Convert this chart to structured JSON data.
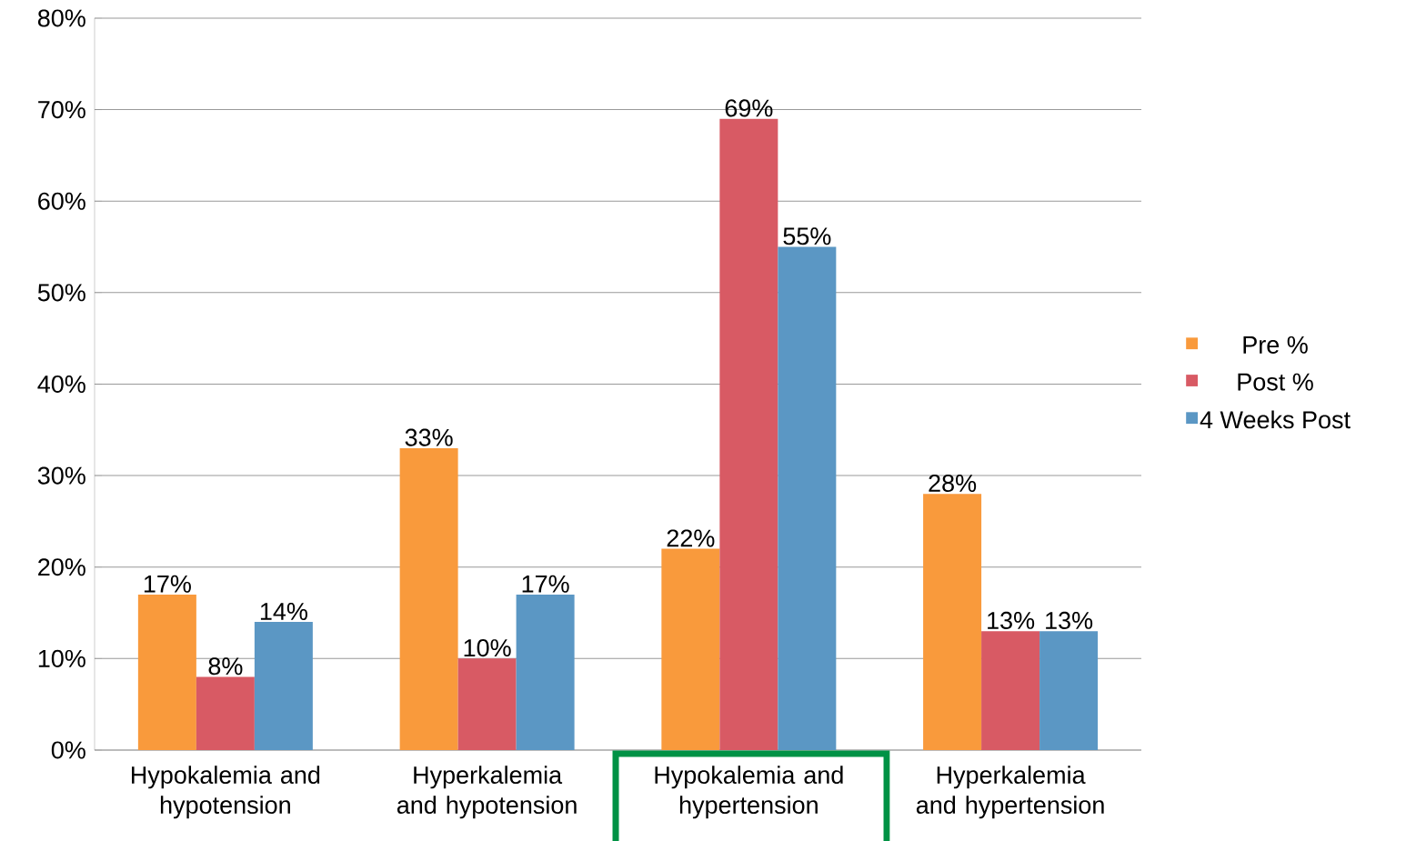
{
  "chart_data": {
    "type": "bar",
    "categories": [
      "Hypokalemia and hypotension",
      "Hyperkalemia and hypotension",
      "Hypokalemia and hypertension",
      "Hyperkalemia and hypertension"
    ],
    "series": [
      {
        "name": "Pre %",
        "color": "#f99a3c",
        "values": [
          17,
          33,
          22,
          28
        ],
        "value_labels": [
          "17%",
          "33%",
          "22%",
          "28%"
        ]
      },
      {
        "name": "Post %",
        "color": "#d85a64",
        "values": [
          8,
          10,
          69,
          13
        ],
        "value_labels": [
          "8%",
          "10%",
          "69%",
          "13%"
        ]
      },
      {
        "name": "4 Weeks Post",
        "color": "#5b97c4",
        "values": [
          14,
          17,
          55,
          13
        ],
        "value_labels": [
          "14%",
          "17%",
          "55%",
          "13%"
        ]
      }
    ],
    "ylim": [
      0,
      80
    ],
    "yticks": [
      {
        "value": 0,
        "label": "0%"
      },
      {
        "value": 10,
        "label": "10%"
      },
      {
        "value": 20,
        "label": "20%"
      },
      {
        "value": 30,
        "label": "30%"
      },
      {
        "value": 40,
        "label": "40%"
      },
      {
        "value": 50,
        "label": "50%"
      },
      {
        "value": 60,
        "label": "60%"
      },
      {
        "value": 70,
        "label": "70%"
      },
      {
        "value": 80,
        "label": "80%"
      }
    ],
    "grid": "y",
    "legend": "right"
  }
}
